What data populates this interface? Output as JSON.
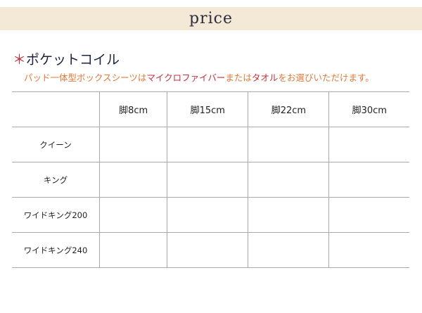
{
  "banner": {
    "title": "price"
  },
  "section": {
    "asterisk": "＊",
    "title": "ポケットコイル"
  },
  "note": {
    "part1": "パッド一体型ボックスシーツは",
    "highlight1": "マイクロファイバー",
    "part2": "または",
    "highlight2": "タオル",
    "part3": "をお選びいただけます。",
    "color": "#e07a3a",
    "highlight_color": "#c0303a"
  },
  "table": {
    "columns": [
      "",
      "脚8cm",
      "脚15cm",
      "脚22cm",
      "脚30cm"
    ],
    "rows": [
      {
        "label": "クイーン",
        "values": [
          "",
          "",
          "",
          ""
        ]
      },
      {
        "label": "キング",
        "values": [
          "",
          "",
          "",
          ""
        ]
      },
      {
        "label": "ワイドキング200",
        "values": [
          "",
          "",
          "",
          ""
        ]
      },
      {
        "label": "ワイドキング240",
        "values": [
          "",
          "",
          "",
          ""
        ]
      }
    ]
  }
}
